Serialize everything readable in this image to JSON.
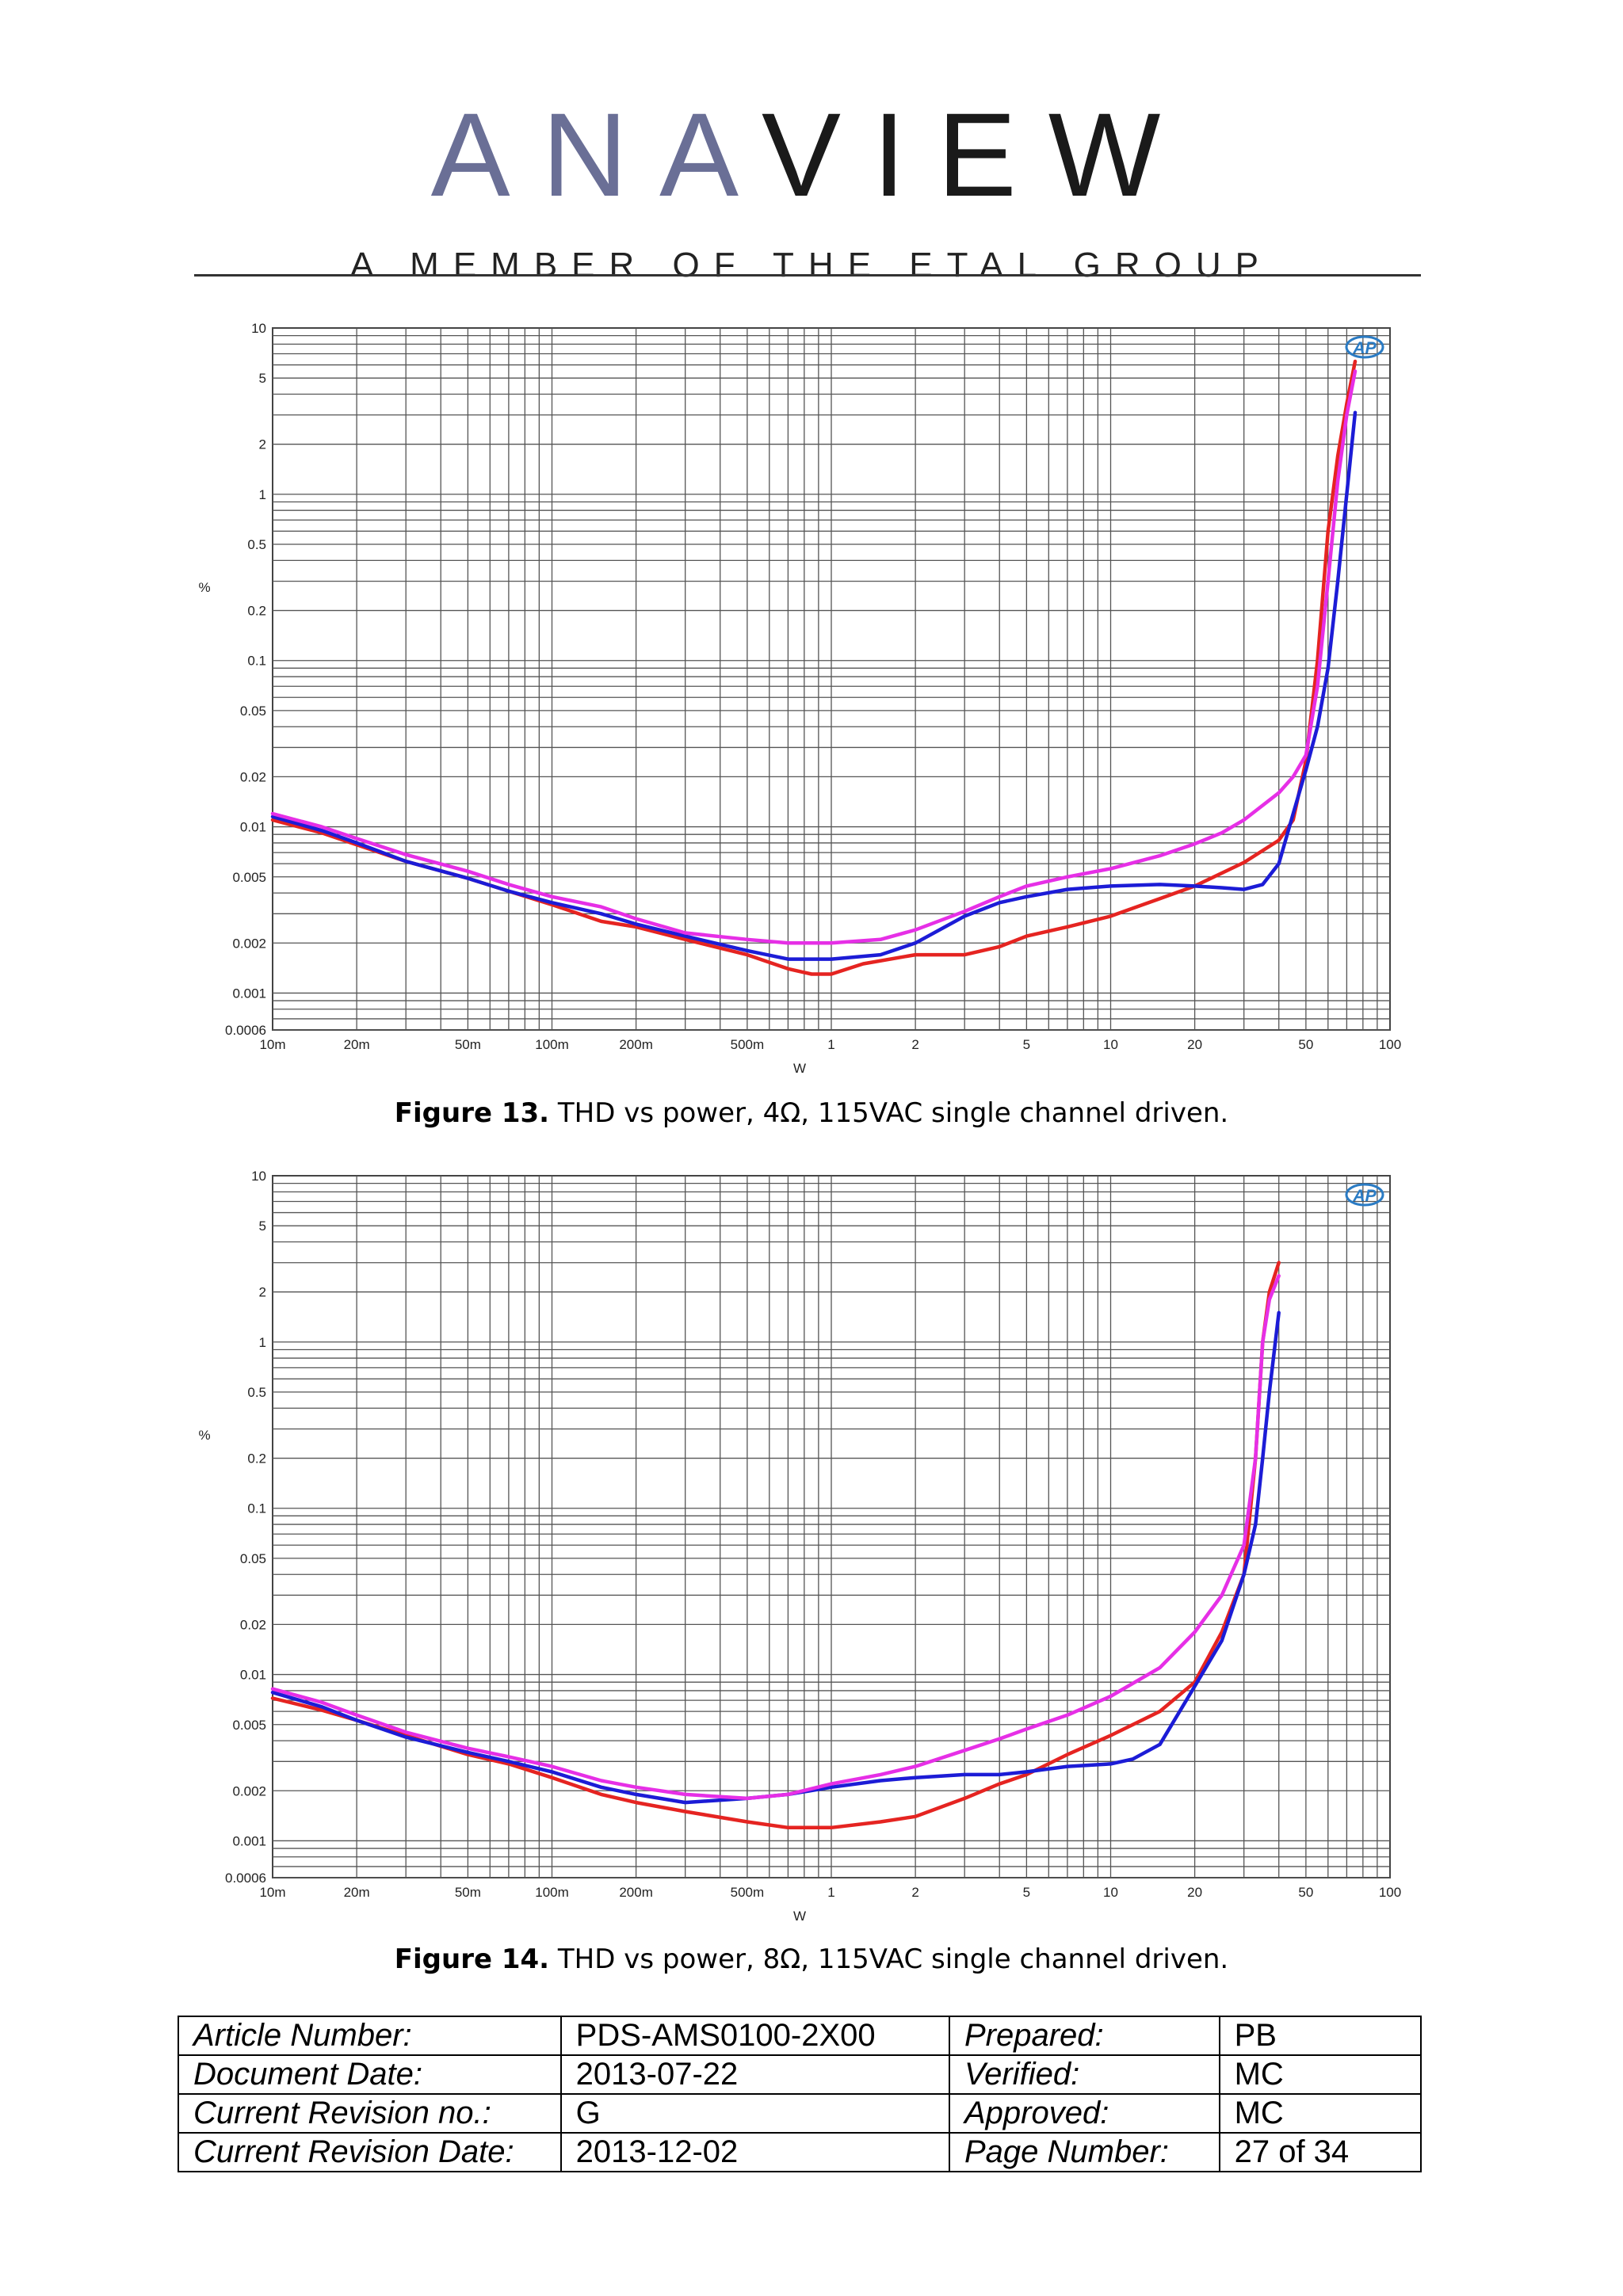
{
  "header": {
    "logo_text": "ANAVIEW",
    "tagline": "A MEMBER OF THE ETAL GROUP"
  },
  "figures": [
    {
      "caption_label": "Figure 13.",
      "caption_text": " THD vs power, 4Ω, 115VAC single channel driven.",
      "badge": "AP"
    },
    {
      "caption_label": "Figure 14.",
      "caption_text": " THD vs power, 8Ω, 115VAC single channel driven.",
      "badge": "AP"
    }
  ],
  "chart_data": [
    {
      "type": "line",
      "xlabel": "W",
      "ylabel": "%",
      "xscale": "log",
      "yscale": "log",
      "xlim": [
        0.01,
        100
      ],
      "ylim": [
        0.0006,
        10
      ],
      "grid": true,
      "xticks": [
        {
          "v": 0.01,
          "label": "10m"
        },
        {
          "v": 0.02,
          "label": "20m"
        },
        {
          "v": 0.05,
          "label": "50m"
        },
        {
          "v": 0.1,
          "label": "100m"
        },
        {
          "v": 0.2,
          "label": "200m"
        },
        {
          "v": 0.5,
          "label": "500m"
        },
        {
          "v": 1,
          "label": "1"
        },
        {
          "v": 2,
          "label": "2"
        },
        {
          "v": 5,
          "label": "5"
        },
        {
          "v": 10,
          "label": "10"
        },
        {
          "v": 20,
          "label": "20"
        },
        {
          "v": 50,
          "label": "50"
        },
        {
          "v": 100,
          "label": "100"
        }
      ],
      "yticks": [
        {
          "v": 10,
          "label": "10"
        },
        {
          "v": 5,
          "label": "5"
        },
        {
          "v": 2,
          "label": "2"
        },
        {
          "v": 1,
          "label": "1"
        },
        {
          "v": 0.5,
          "label": "0.5"
        },
        {
          "v": 0.2,
          "label": "0.2"
        },
        {
          "v": 0.1,
          "label": "0.1"
        },
        {
          "v": 0.05,
          "label": "0.05"
        },
        {
          "v": 0.02,
          "label": "0.02"
        },
        {
          "v": 0.01,
          "label": "0.01"
        },
        {
          "v": 0.005,
          "label": "0.005"
        },
        {
          "v": 0.002,
          "label": "0.002"
        },
        {
          "v": 0.001,
          "label": "0.001"
        },
        {
          "v": 0.0006,
          "label": "0.0006"
        }
      ],
      "series": [
        {
          "color": "#e52421",
          "points": [
            [
              0.01,
              0.011
            ],
            [
              0.015,
              0.0092
            ],
            [
              0.02,
              0.0078
            ],
            [
              0.03,
              0.0062
            ],
            [
              0.05,
              0.0049
            ],
            [
              0.07,
              0.0041
            ],
            [
              0.1,
              0.0034
            ],
            [
              0.15,
              0.0027
            ],
            [
              0.2,
              0.0025
            ],
            [
              0.3,
              0.0021
            ],
            [
              0.5,
              0.0017
            ],
            [
              0.7,
              0.0014
            ],
            [
              0.85,
              0.0013
            ],
            [
              1,
              0.0013
            ],
            [
              1.3,
              0.0015
            ],
            [
              2,
              0.0017
            ],
            [
              3,
              0.0017
            ],
            [
              4,
              0.0019
            ],
            [
              5,
              0.0022
            ],
            [
              7,
              0.0025
            ],
            [
              10,
              0.0029
            ],
            [
              15,
              0.0037
            ],
            [
              20,
              0.0044
            ],
            [
              30,
              0.0061
            ],
            [
              40,
              0.0083
            ],
            [
              45,
              0.011
            ],
            [
              50,
              0.025
            ],
            [
              55,
              0.1
            ],
            [
              60,
              0.6
            ],
            [
              65,
              1.7
            ],
            [
              70,
              3.5
            ],
            [
              75,
              6.3
            ]
          ]
        },
        {
          "color": "#1c1cd6",
          "points": [
            [
              0.01,
              0.0115
            ],
            [
              0.015,
              0.0095
            ],
            [
              0.02,
              0.008
            ],
            [
              0.03,
              0.0062
            ],
            [
              0.05,
              0.0049
            ],
            [
              0.07,
              0.0041
            ],
            [
              0.1,
              0.0035
            ],
            [
              0.15,
              0.003
            ],
            [
              0.2,
              0.0026
            ],
            [
              0.3,
              0.0022
            ],
            [
              0.5,
              0.0018
            ],
            [
              0.7,
              0.0016
            ],
            [
              1,
              0.0016
            ],
            [
              1.5,
              0.0017
            ],
            [
              2,
              0.002
            ],
            [
              3,
              0.0029
            ],
            [
              4,
              0.0035
            ],
            [
              5,
              0.0038
            ],
            [
              7,
              0.0042
            ],
            [
              10,
              0.0044
            ],
            [
              15,
              0.0045
            ],
            [
              20,
              0.0044
            ],
            [
              25,
              0.0043
            ],
            [
              30,
              0.0042
            ],
            [
              35,
              0.0045
            ],
            [
              40,
              0.006
            ],
            [
              45,
              0.012
            ],
            [
              50,
              0.022
            ],
            [
              55,
              0.04
            ],
            [
              60,
              0.09
            ],
            [
              65,
              0.3
            ],
            [
              70,
              1
            ],
            [
              75,
              3.1
            ]
          ]
        },
        {
          "color": "#e62fe6",
          "points": [
            [
              0.01,
              0.012
            ],
            [
              0.015,
              0.01
            ],
            [
              0.02,
              0.0085
            ],
            [
              0.03,
              0.0068
            ],
            [
              0.05,
              0.0054
            ],
            [
              0.07,
              0.0045
            ],
            [
              0.1,
              0.0038
            ],
            [
              0.15,
              0.0033
            ],
            [
              0.2,
              0.0028
            ],
            [
              0.3,
              0.0023
            ],
            [
              0.5,
              0.0021
            ],
            [
              0.7,
              0.002
            ],
            [
              1,
              0.002
            ],
            [
              1.5,
              0.0021
            ],
            [
              2,
              0.0024
            ],
            [
              3,
              0.0031
            ],
            [
              4,
              0.0038
            ],
            [
              5,
              0.0044
            ],
            [
              7,
              0.005
            ],
            [
              10,
              0.0056
            ],
            [
              15,
              0.0067
            ],
            [
              20,
              0.0079
            ],
            [
              25,
              0.0092
            ],
            [
              30,
              0.011
            ],
            [
              40,
              0.016
            ],
            [
              45,
              0.02
            ],
            [
              50,
              0.027
            ],
            [
              55,
              0.07
            ],
            [
              60,
              0.3
            ],
            [
              65,
              1.2
            ],
            [
              70,
              3
            ],
            [
              75,
              5.5
            ]
          ]
        }
      ]
    },
    {
      "type": "line",
      "xlabel": "W",
      "ylabel": "%",
      "xscale": "log",
      "yscale": "log",
      "xlim": [
        0.01,
        100
      ],
      "ylim": [
        0.0006,
        10
      ],
      "grid": true,
      "xticks": [
        {
          "v": 0.01,
          "label": "10m"
        },
        {
          "v": 0.02,
          "label": "20m"
        },
        {
          "v": 0.05,
          "label": "50m"
        },
        {
          "v": 0.1,
          "label": "100m"
        },
        {
          "v": 0.2,
          "label": "200m"
        },
        {
          "v": 0.5,
          "label": "500m"
        },
        {
          "v": 1,
          "label": "1"
        },
        {
          "v": 2,
          "label": "2"
        },
        {
          "v": 5,
          "label": "5"
        },
        {
          "v": 10,
          "label": "10"
        },
        {
          "v": 20,
          "label": "20"
        },
        {
          "v": 50,
          "label": "50"
        },
        {
          "v": 100,
          "label": "100"
        }
      ],
      "yticks": [
        {
          "v": 10,
          "label": "10"
        },
        {
          "v": 5,
          "label": "5"
        },
        {
          "v": 2,
          "label": "2"
        },
        {
          "v": 1,
          "label": "1"
        },
        {
          "v": 0.5,
          "label": "0.5"
        },
        {
          "v": 0.2,
          "label": "0.2"
        },
        {
          "v": 0.1,
          "label": "0.1"
        },
        {
          "v": 0.05,
          "label": "0.05"
        },
        {
          "v": 0.02,
          "label": "0.02"
        },
        {
          "v": 0.01,
          "label": "0.01"
        },
        {
          "v": 0.005,
          "label": "0.005"
        },
        {
          "v": 0.002,
          "label": "0.002"
        },
        {
          "v": 0.001,
          "label": "0.001"
        },
        {
          "v": 0.0006,
          "label": "0.0006"
        }
      ],
      "series": [
        {
          "color": "#e52421",
          "points": [
            [
              0.01,
              0.0072
            ],
            [
              0.015,
              0.0061
            ],
            [
              0.02,
              0.0053
            ],
            [
              0.03,
              0.0043
            ],
            [
              0.05,
              0.0033
            ],
            [
              0.07,
              0.0029
            ],
            [
              0.1,
              0.0024
            ],
            [
              0.15,
              0.0019
            ],
            [
              0.2,
              0.0017
            ],
            [
              0.3,
              0.0015
            ],
            [
              0.5,
              0.0013
            ],
            [
              0.7,
              0.0012
            ],
            [
              1,
              0.0012
            ],
            [
              1.5,
              0.0013
            ],
            [
              2,
              0.0014
            ],
            [
              3,
              0.0018
            ],
            [
              4,
              0.0022
            ],
            [
              5,
              0.0025
            ],
            [
              7,
              0.0033
            ],
            [
              10,
              0.0043
            ],
            [
              15,
              0.006
            ],
            [
              20,
              0.009
            ],
            [
              25,
              0.018
            ],
            [
              30,
              0.04
            ],
            [
              33,
              0.2
            ],
            [
              35,
              1
            ],
            [
              37,
              2
            ],
            [
              40,
              3
            ]
          ]
        },
        {
          "color": "#1c1cd6",
          "points": [
            [
              0.01,
              0.0078
            ],
            [
              0.015,
              0.0064
            ],
            [
              0.02,
              0.0053
            ],
            [
              0.03,
              0.0042
            ],
            [
              0.05,
              0.0034
            ],
            [
              0.07,
              0.003
            ],
            [
              0.1,
              0.0026
            ],
            [
              0.15,
              0.0021
            ],
            [
              0.2,
              0.0019
            ],
            [
              0.3,
              0.0017
            ],
            [
              0.5,
              0.0018
            ],
            [
              0.7,
              0.0019
            ],
            [
              1,
              0.0021
            ],
            [
              1.5,
              0.0023
            ],
            [
              2,
              0.0024
            ],
            [
              3,
              0.0025
            ],
            [
              4,
              0.0025
            ],
            [
              5,
              0.0026
            ],
            [
              7,
              0.0028
            ],
            [
              10,
              0.0029
            ],
            [
              12,
              0.0031
            ],
            [
              15,
              0.0038
            ],
            [
              20,
              0.0085
            ],
            [
              25,
              0.016
            ],
            [
              30,
              0.04
            ],
            [
              33,
              0.08
            ],
            [
              35,
              0.2
            ],
            [
              37,
              0.5
            ],
            [
              40,
              1.5
            ]
          ]
        },
        {
          "color": "#e62fe6",
          "points": [
            [
              0.01,
              0.0082
            ],
            [
              0.015,
              0.0068
            ],
            [
              0.02,
              0.0057
            ],
            [
              0.03,
              0.0045
            ],
            [
              0.05,
              0.0036
            ],
            [
              0.07,
              0.0032
            ],
            [
              0.1,
              0.0028
            ],
            [
              0.15,
              0.0023
            ],
            [
              0.2,
              0.0021
            ],
            [
              0.3,
              0.0019
            ],
            [
              0.5,
              0.0018
            ],
            [
              0.7,
              0.0019
            ],
            [
              1,
              0.0022
            ],
            [
              1.5,
              0.0025
            ],
            [
              2,
              0.0028
            ],
            [
              3,
              0.0035
            ],
            [
              4,
              0.0041
            ],
            [
              5,
              0.0047
            ],
            [
              7,
              0.0057
            ],
            [
              10,
              0.0074
            ],
            [
              15,
              0.011
            ],
            [
              20,
              0.018
            ],
            [
              25,
              0.03
            ],
            [
              30,
              0.06
            ],
            [
              33,
              0.2
            ],
            [
              35,
              1
            ],
            [
              37,
              1.8
            ],
            [
              40,
              2.5
            ]
          ]
        }
      ]
    }
  ],
  "meta_table": [
    {
      "label1": "Article Number:",
      "value1": "PDS-AMS0100-2X00",
      "label2": "Prepared:",
      "value2": "PB"
    },
    {
      "label1": "Document Date:",
      "value1": "2013-07-22",
      "label2": "Verified:",
      "value2": "MC"
    },
    {
      "label1": "Current Revision no.:",
      "value1": "G",
      "label2": "Approved:",
      "value2": "MC"
    },
    {
      "label1": "Current Revision Date:",
      "value1": "2013-12-02",
      "label2": "Page Number:",
      "value2": "27 of 34"
    }
  ]
}
